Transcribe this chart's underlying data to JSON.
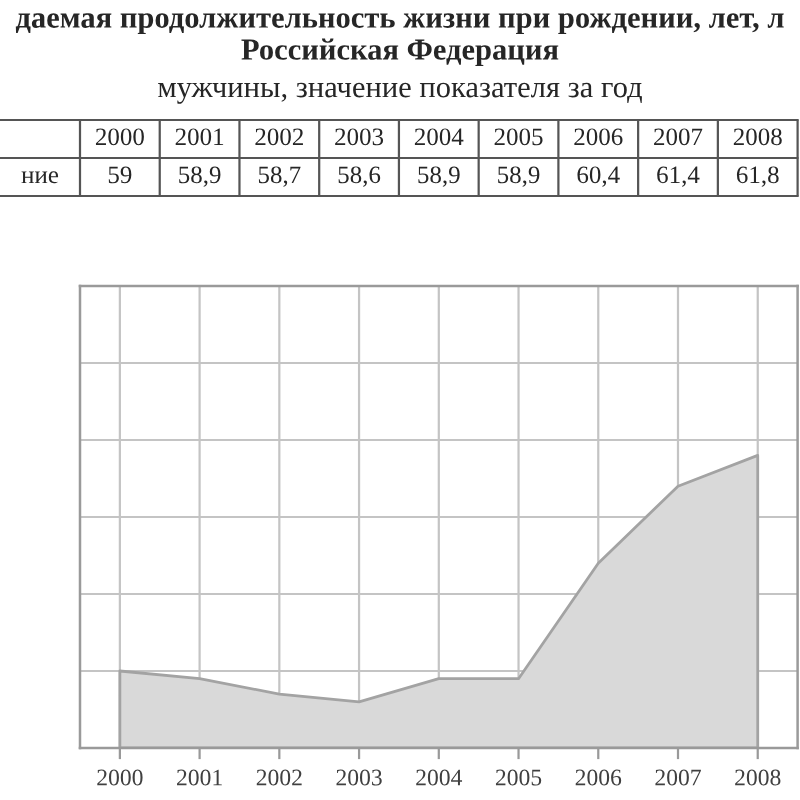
{
  "chart_data": {
    "type": "area",
    "title": "даемая продолжительность жизни при рождении, лет, л\nРоссийская Федерация",
    "subtitle": "мужчины, значение показателя за год",
    "annotations": [
      "ние"
    ],
    "categories": [
      "2000",
      "2001",
      "2002",
      "2003",
      "2004",
      "2005",
      "2006",
      "2007",
      "2008"
    ],
    "series": [
      {
        "color": "#d9d9d9",
        "values": [
          59,
          58.9,
          58.7,
          58.6,
          58.9,
          58.9,
          60.4,
          61.4,
          61.8
        ],
        "value_labels": [
          "59",
          "58,9",
          "58,7",
          "58,6",
          "58,9",
          "58,9",
          "60,4",
          "61,4",
          "61,8"
        ]
      }
    ],
    "ylim": [
      58,
      64
    ],
    "tick_labels": "x",
    "grid": true
  }
}
